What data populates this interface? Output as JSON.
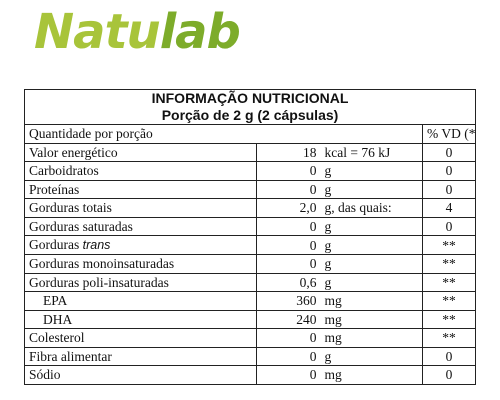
{
  "brand": {
    "part1": "Natu",
    "part2": "lab"
  },
  "table": {
    "title": "INFORMAÇÃO NUTRICIONAL",
    "subtitle": "Porção de 2 g (2 cápsulas)",
    "header": {
      "qty": "Quantidade por porção",
      "vd": "% VD (*)"
    },
    "rows": [
      {
        "name": "Valor energético",
        "value": "18",
        "unit": "kcal = 76 kJ",
        "vd": "0"
      },
      {
        "name": "Carboidratos",
        "value": "0",
        "unit": "g",
        "vd": "0"
      },
      {
        "name": "Proteínas",
        "value": "0",
        "unit": "g",
        "vd": "0"
      },
      {
        "name": "Gorduras totais",
        "value": "2,0",
        "unit": "g, das quais:",
        "vd": "4"
      },
      {
        "name": "Gorduras saturadas",
        "value": "0",
        "unit": "g",
        "vd": "0"
      },
      {
        "name": "Gorduras",
        "name_italic": "trans",
        "value": "0",
        "unit": "g",
        "vd": "**"
      },
      {
        "name": "Gorduras monoinsaturadas",
        "value": "0",
        "unit": "g",
        "vd": "**"
      },
      {
        "name": "Gorduras poli-insaturadas",
        "value": "0,6",
        "unit": "g",
        "vd": "**"
      },
      {
        "name": "EPA",
        "value": "360",
        "unit": "mg",
        "vd": "**"
      },
      {
        "name": "DHA",
        "value": "240",
        "unit": "mg",
        "vd": "**"
      },
      {
        "name": "Colesterol",
        "value": "0",
        "unit": "mg",
        "vd": "**"
      },
      {
        "name": "Fibra alimentar",
        "value": "0",
        "unit": "g",
        "vd": "0"
      },
      {
        "name": "Sódio",
        "value": "0",
        "unit": "mg",
        "vd": "0"
      }
    ]
  }
}
